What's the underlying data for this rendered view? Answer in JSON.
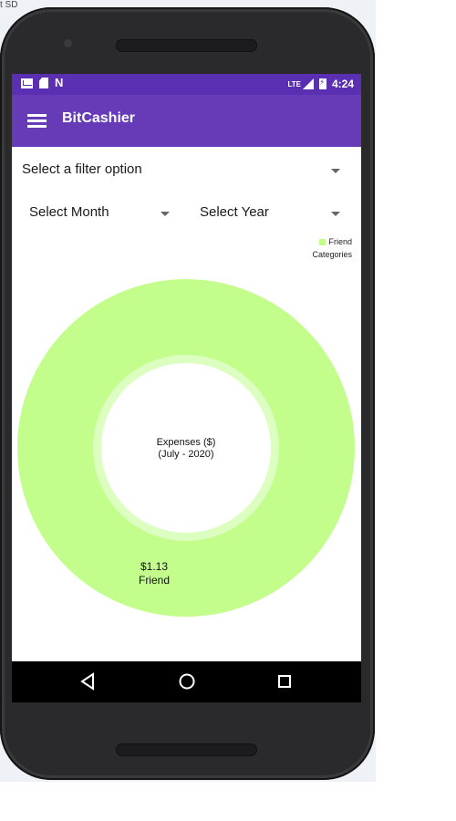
{
  "emulator": {
    "corner_text": "t SD"
  },
  "status_bar": {
    "left_icons": [
      "gmail-icon",
      "sd-card-icon",
      "n-notification-icon"
    ],
    "network": "LTE",
    "time": "4:24",
    "color": "#5b2fb2"
  },
  "app_bar": {
    "title": "BitCashier",
    "color": "#673ab7",
    "menu_icon": "hamburger-menu-icon"
  },
  "filters": {
    "filter_option": {
      "label": "Select a filter option"
    },
    "month": {
      "label": "Select Month"
    },
    "year": {
      "label": "Select Year"
    }
  },
  "chart_data": {
    "type": "pie",
    "variant": "donut",
    "center_text": [
      "Expenses ($)",
      "(July - 2020)"
    ],
    "slices": [
      {
        "name": "Friend",
        "value": 1.13,
        "label": "$1.13",
        "color": "#c3fe8c"
      }
    ],
    "legend": {
      "entries": [
        "Friend"
      ],
      "title": "Categories",
      "placement": "top-right"
    }
  },
  "nav_bar": {
    "buttons": [
      "back-icon",
      "home-icon",
      "recents-icon"
    ]
  }
}
